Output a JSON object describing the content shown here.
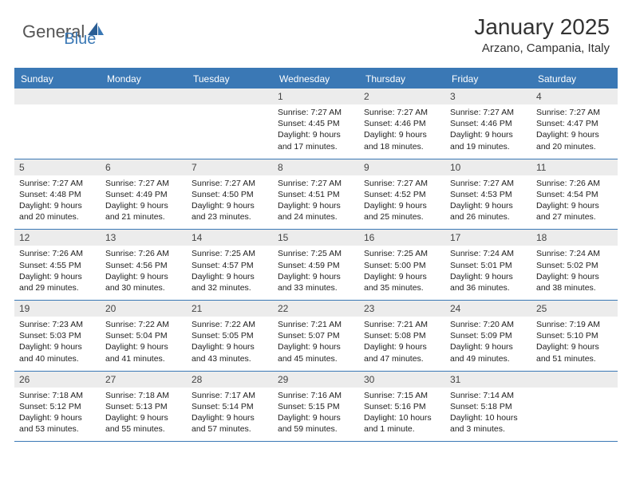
{
  "logo": {
    "text1": "General",
    "text2": "Blue"
  },
  "title": "January 2025",
  "location": "Arzano, Campania, Italy",
  "colors": {
    "accent": "#3a78b5",
    "dayNumBg": "#ececec",
    "text": "#222222"
  },
  "weekdays": [
    "Sunday",
    "Monday",
    "Tuesday",
    "Wednesday",
    "Thursday",
    "Friday",
    "Saturday"
  ],
  "weeks": [
    [
      {
        "n": "",
        "sr": "",
        "ss": "",
        "dl": ""
      },
      {
        "n": "",
        "sr": "",
        "ss": "",
        "dl": ""
      },
      {
        "n": "",
        "sr": "",
        "ss": "",
        "dl": ""
      },
      {
        "n": "1",
        "sr": "Sunrise: 7:27 AM",
        "ss": "Sunset: 4:45 PM",
        "dl": "Daylight: 9 hours and 17 minutes."
      },
      {
        "n": "2",
        "sr": "Sunrise: 7:27 AM",
        "ss": "Sunset: 4:46 PM",
        "dl": "Daylight: 9 hours and 18 minutes."
      },
      {
        "n": "3",
        "sr": "Sunrise: 7:27 AM",
        "ss": "Sunset: 4:46 PM",
        "dl": "Daylight: 9 hours and 19 minutes."
      },
      {
        "n": "4",
        "sr": "Sunrise: 7:27 AM",
        "ss": "Sunset: 4:47 PM",
        "dl": "Daylight: 9 hours and 20 minutes."
      }
    ],
    [
      {
        "n": "5",
        "sr": "Sunrise: 7:27 AM",
        "ss": "Sunset: 4:48 PM",
        "dl": "Daylight: 9 hours and 20 minutes."
      },
      {
        "n": "6",
        "sr": "Sunrise: 7:27 AM",
        "ss": "Sunset: 4:49 PM",
        "dl": "Daylight: 9 hours and 21 minutes."
      },
      {
        "n": "7",
        "sr": "Sunrise: 7:27 AM",
        "ss": "Sunset: 4:50 PM",
        "dl": "Daylight: 9 hours and 23 minutes."
      },
      {
        "n": "8",
        "sr": "Sunrise: 7:27 AM",
        "ss": "Sunset: 4:51 PM",
        "dl": "Daylight: 9 hours and 24 minutes."
      },
      {
        "n": "9",
        "sr": "Sunrise: 7:27 AM",
        "ss": "Sunset: 4:52 PM",
        "dl": "Daylight: 9 hours and 25 minutes."
      },
      {
        "n": "10",
        "sr": "Sunrise: 7:27 AM",
        "ss": "Sunset: 4:53 PM",
        "dl": "Daylight: 9 hours and 26 minutes."
      },
      {
        "n": "11",
        "sr": "Sunrise: 7:26 AM",
        "ss": "Sunset: 4:54 PM",
        "dl": "Daylight: 9 hours and 27 minutes."
      }
    ],
    [
      {
        "n": "12",
        "sr": "Sunrise: 7:26 AM",
        "ss": "Sunset: 4:55 PM",
        "dl": "Daylight: 9 hours and 29 minutes."
      },
      {
        "n": "13",
        "sr": "Sunrise: 7:26 AM",
        "ss": "Sunset: 4:56 PM",
        "dl": "Daylight: 9 hours and 30 minutes."
      },
      {
        "n": "14",
        "sr": "Sunrise: 7:25 AM",
        "ss": "Sunset: 4:57 PM",
        "dl": "Daylight: 9 hours and 32 minutes."
      },
      {
        "n": "15",
        "sr": "Sunrise: 7:25 AM",
        "ss": "Sunset: 4:59 PM",
        "dl": "Daylight: 9 hours and 33 minutes."
      },
      {
        "n": "16",
        "sr": "Sunrise: 7:25 AM",
        "ss": "Sunset: 5:00 PM",
        "dl": "Daylight: 9 hours and 35 minutes."
      },
      {
        "n": "17",
        "sr": "Sunrise: 7:24 AM",
        "ss": "Sunset: 5:01 PM",
        "dl": "Daylight: 9 hours and 36 minutes."
      },
      {
        "n": "18",
        "sr": "Sunrise: 7:24 AM",
        "ss": "Sunset: 5:02 PM",
        "dl": "Daylight: 9 hours and 38 minutes."
      }
    ],
    [
      {
        "n": "19",
        "sr": "Sunrise: 7:23 AM",
        "ss": "Sunset: 5:03 PM",
        "dl": "Daylight: 9 hours and 40 minutes."
      },
      {
        "n": "20",
        "sr": "Sunrise: 7:22 AM",
        "ss": "Sunset: 5:04 PM",
        "dl": "Daylight: 9 hours and 41 minutes."
      },
      {
        "n": "21",
        "sr": "Sunrise: 7:22 AM",
        "ss": "Sunset: 5:05 PM",
        "dl": "Daylight: 9 hours and 43 minutes."
      },
      {
        "n": "22",
        "sr": "Sunrise: 7:21 AM",
        "ss": "Sunset: 5:07 PM",
        "dl": "Daylight: 9 hours and 45 minutes."
      },
      {
        "n": "23",
        "sr": "Sunrise: 7:21 AM",
        "ss": "Sunset: 5:08 PM",
        "dl": "Daylight: 9 hours and 47 minutes."
      },
      {
        "n": "24",
        "sr": "Sunrise: 7:20 AM",
        "ss": "Sunset: 5:09 PM",
        "dl": "Daylight: 9 hours and 49 minutes."
      },
      {
        "n": "25",
        "sr": "Sunrise: 7:19 AM",
        "ss": "Sunset: 5:10 PM",
        "dl": "Daylight: 9 hours and 51 minutes."
      }
    ],
    [
      {
        "n": "26",
        "sr": "Sunrise: 7:18 AM",
        "ss": "Sunset: 5:12 PM",
        "dl": "Daylight: 9 hours and 53 minutes."
      },
      {
        "n": "27",
        "sr": "Sunrise: 7:18 AM",
        "ss": "Sunset: 5:13 PM",
        "dl": "Daylight: 9 hours and 55 minutes."
      },
      {
        "n": "28",
        "sr": "Sunrise: 7:17 AM",
        "ss": "Sunset: 5:14 PM",
        "dl": "Daylight: 9 hours and 57 minutes."
      },
      {
        "n": "29",
        "sr": "Sunrise: 7:16 AM",
        "ss": "Sunset: 5:15 PM",
        "dl": "Daylight: 9 hours and 59 minutes."
      },
      {
        "n": "30",
        "sr": "Sunrise: 7:15 AM",
        "ss": "Sunset: 5:16 PM",
        "dl": "Daylight: 10 hours and 1 minute."
      },
      {
        "n": "31",
        "sr": "Sunrise: 7:14 AM",
        "ss": "Sunset: 5:18 PM",
        "dl": "Daylight: 10 hours and 3 minutes."
      },
      {
        "n": "",
        "sr": "",
        "ss": "",
        "dl": ""
      }
    ]
  ]
}
